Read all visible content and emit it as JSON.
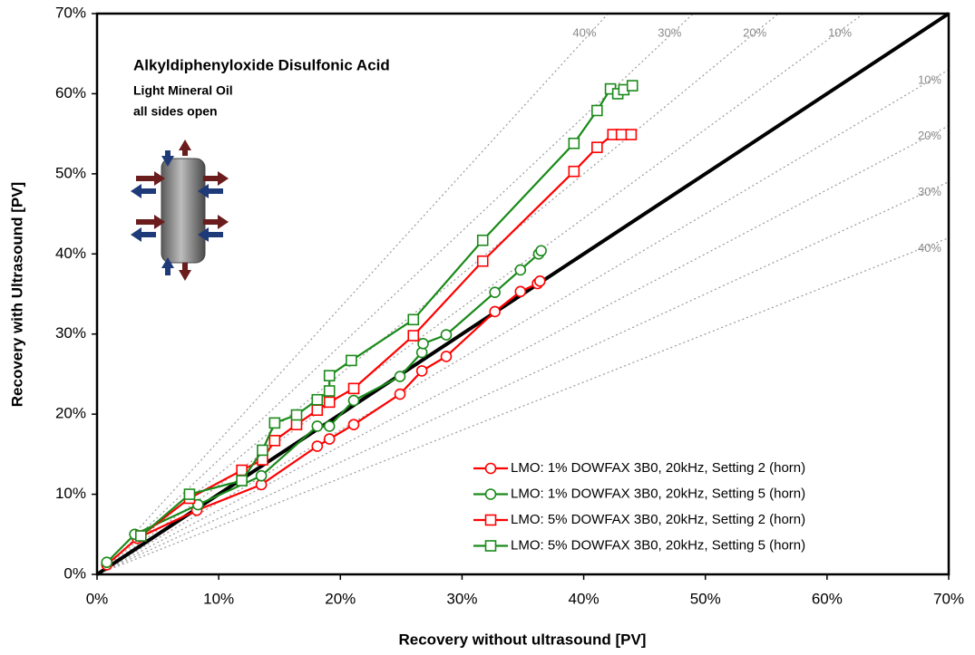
{
  "chart_data": {
    "type": "line",
    "title": "Alkyldiphenyloxide Disulfonic Acid",
    "subtitle": "Light Mineral Oil",
    "annotation": "all sides open",
    "x_label": "Recovery without ultrasound [PV]",
    "y_label": "Recovery with Ultrasound [PV]",
    "xlim": [
      0,
      70
    ],
    "ylim": [
      0,
      70
    ],
    "xticks": [
      {
        "value": 0,
        "label": "0%"
      },
      {
        "value": 10,
        "label": "10%"
      },
      {
        "value": 20,
        "label": "20%"
      },
      {
        "value": 30,
        "label": "30%"
      },
      {
        "value": 40,
        "label": "40%"
      },
      {
        "value": 50,
        "label": "50%"
      },
      {
        "value": 60,
        "label": "60%"
      },
      {
        "value": 70,
        "label": "70%"
      }
    ],
    "yticks": [
      {
        "value": 0,
        "label": "0%"
      },
      {
        "value": 10,
        "label": "10%"
      },
      {
        "value": 20,
        "label": "20%"
      },
      {
        "value": 30,
        "label": "30%"
      },
      {
        "value": 40,
        "label": "40%"
      },
      {
        "value": 50,
        "label": "50%"
      },
      {
        "value": 60,
        "label": "60%"
      },
      {
        "value": 70,
        "label": "70%"
      }
    ],
    "diagonal_line": true,
    "reference_lines": {
      "above": [
        {
          "value": 40,
          "label": "40%"
        },
        {
          "value": 30,
          "label": "30%"
        },
        {
          "value": 20,
          "label": "20%"
        },
        {
          "value": 10,
          "label": "10%"
        }
      ],
      "below": [
        {
          "value": 10,
          "label": "10%"
        },
        {
          "value": 20,
          "label": "20%"
        },
        {
          "value": 30,
          "label": "30%"
        },
        {
          "value": 40,
          "label": "40%"
        }
      ]
    },
    "legend": "lower right",
    "series": [
      {
        "name": "LMO: 1% DOWFAX 3B0, 20kHz, Setting 2 (horn)",
        "color": "#ff0000",
        "marker": "circle",
        "x": [
          0.8,
          3.3,
          8.2,
          13.5,
          18.1,
          19.1,
          21.1,
          24.9,
          26.7,
          28.7,
          32.7,
          34.8,
          36.2,
          36.4
        ],
        "values": [
          1.2,
          4.5,
          8.0,
          11.2,
          16.0,
          16.9,
          18.7,
          22.5,
          25.4,
          27.2,
          32.8,
          35.3,
          36.3,
          36.6
        ]
      },
      {
        "name": "LMO: 1% DOWFAX 3B0, 20kHz, Setting 5 (horn)",
        "color": "#1a8a1a",
        "marker": "circle",
        "x": [
          0.8,
          3.1,
          8.3,
          13.5,
          18.1,
          19.1,
          21.1,
          24.9,
          26.7,
          26.8,
          28.7,
          32.7,
          34.8,
          36.3,
          36.5
        ],
        "values": [
          1.5,
          5.0,
          8.7,
          12.3,
          18.5,
          18.5,
          21.7,
          24.7,
          27.7,
          28.8,
          29.9,
          35.2,
          38.0,
          40.0,
          40.4
        ]
      },
      {
        "name": "LMO: 5% DOWFAX 3B0, 20kHz, Setting 2 (horn)",
        "color": "#ff0000",
        "marker": "square",
        "x": [
          3.6,
          7.6,
          11.9,
          13.6,
          14.6,
          16.4,
          18.1,
          19.1,
          21.1,
          26.0,
          31.7,
          39.2,
          41.1,
          42.4,
          43.1,
          43.9
        ],
        "values": [
          4.8,
          9.5,
          13.0,
          14.3,
          16.7,
          18.7,
          20.5,
          21.5,
          23.2,
          29.8,
          39.1,
          50.3,
          53.3,
          54.9,
          54.9,
          54.9
        ]
      },
      {
        "name": "LMO: 5% DOWFAX 3B0, 20kHz, Setting 5 (horn)",
        "color": "#1a8a1a",
        "marker": "square",
        "x": [
          3.6,
          7.6,
          11.9,
          13.6,
          14.6,
          16.4,
          18.1,
          19.1,
          19.1,
          20.9,
          26.0,
          31.7,
          39.2,
          41.1,
          42.2,
          42.8,
          43.3,
          44.0
        ],
        "values": [
          4.8,
          10.0,
          11.7,
          15.5,
          18.9,
          19.9,
          21.8,
          22.9,
          24.8,
          26.7,
          31.8,
          41.7,
          53.8,
          57.9,
          60.6,
          60.0,
          60.5,
          61.0
        ]
      }
    ]
  }
}
